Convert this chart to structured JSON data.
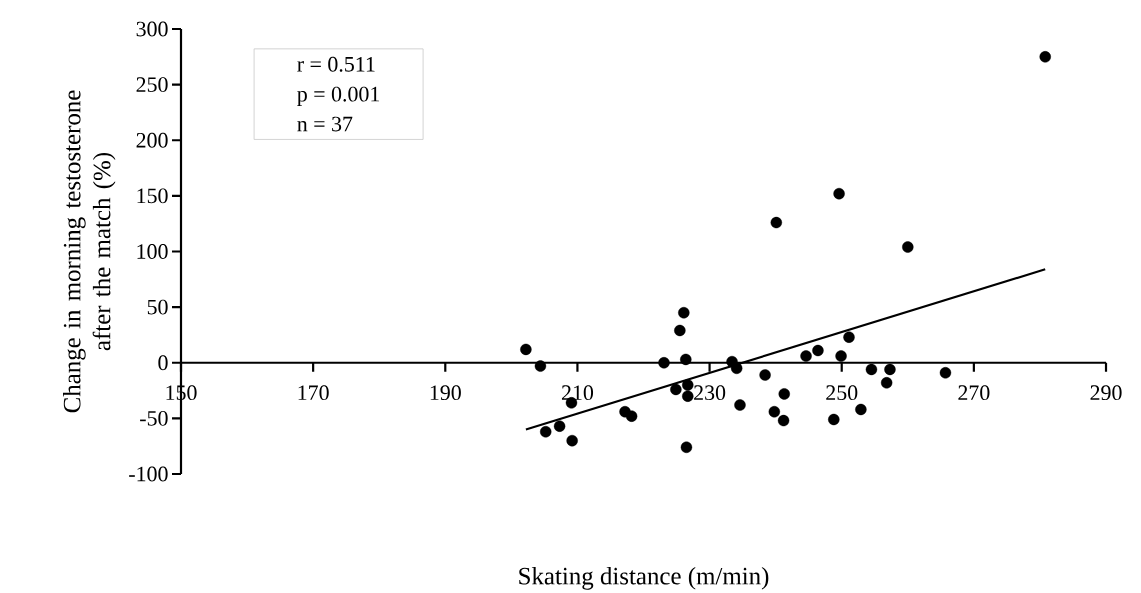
{
  "chart_data": {
    "type": "scatter",
    "xlabel": "Skating distance (m/min)",
    "ylabel": "Change in morning testosterone after the match (%)",
    "annotations": [
      "r = 0.511",
      "p = 0.001",
      "n = 37"
    ],
    "xlim": [
      150,
      290
    ],
    "ylim": [
      -100,
      300
    ],
    "xticks": [
      150,
      170,
      190,
      210,
      230,
      250,
      270,
      290
    ],
    "yticks": [
      -100,
      -50,
      0,
      50,
      100,
      150,
      200,
      250,
      300
    ],
    "grid": false,
    "series": [
      {
        "color": "#000000",
        "marker": "circle",
        "x": [
          202.2,
          204.4,
          205.2,
          207.3,
          209.1,
          209.2,
          217.2,
          218.2,
          223.1,
          226.1,
          225.5,
          226.4,
          226.7,
          224.9,
          226.7,
          226.5,
          233.4,
          234.1,
          234.6,
          238.4,
          239.8,
          240.1,
          241.3,
          241.2,
          244.6,
          246.4,
          249.6,
          249.9,
          251.1,
          248.8,
          252.9,
          254.5,
          257.3,
          256.8,
          260.0,
          265.7,
          280.8
        ],
        "values": [
          12,
          -3,
          -62,
          -57,
          -36,
          -70,
          -44,
          -48,
          0,
          45,
          29,
          3,
          -20,
          -24,
          -30,
          -76,
          1,
          -5,
          -38,
          -11,
          -44,
          126,
          -28,
          -52,
          6,
          11,
          152,
          6,
          23,
          -51,
          -42,
          -6,
          -6,
          -18,
          104,
          -9,
          275
        ]
      },
      {
        "type": "line",
        "color": "#000000",
        "x": [
          202.2,
          280.8
        ],
        "values": [
          -60,
          84
        ]
      }
    ]
  }
}
